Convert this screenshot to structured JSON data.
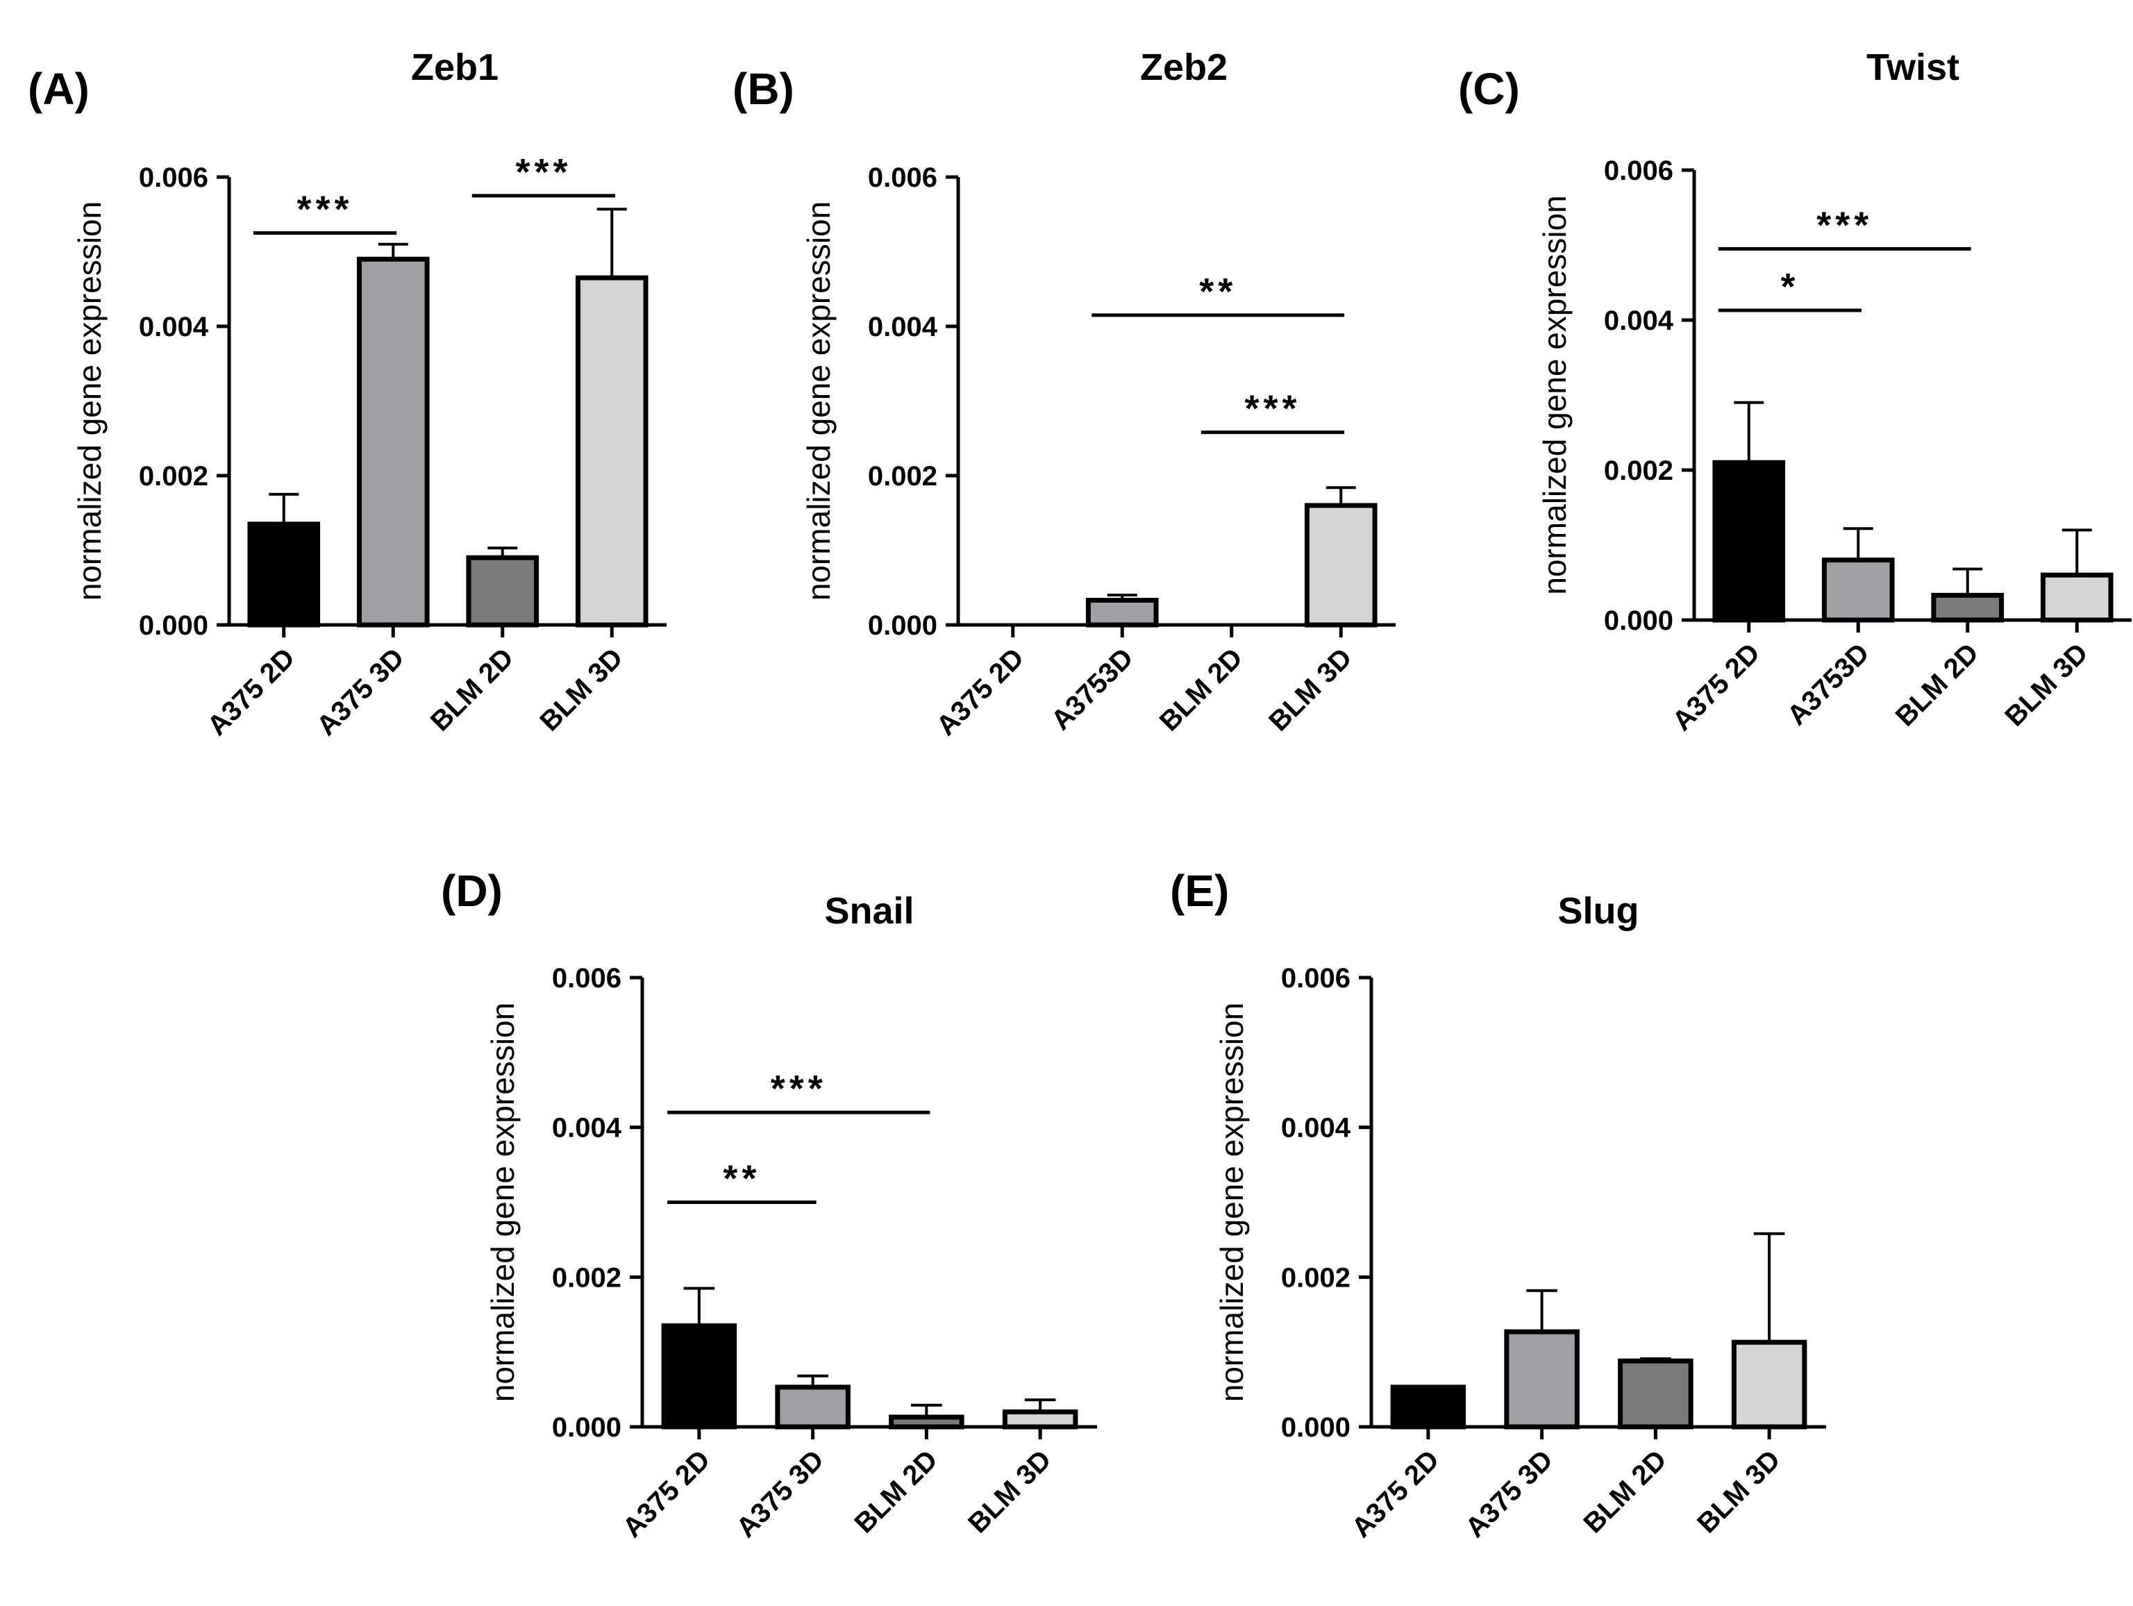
{
  "chart_data": [
    {
      "type": "bar",
      "panel": "(A)",
      "title": "Zeb1",
      "ylabel": "normalized gene expression",
      "ylim": [
        0,
        0.006
      ],
      "yticks": [
        "0.000",
        "0.002",
        "0.004",
        "0.006"
      ],
      "categories": [
        "A375 2D",
        "A375 3D",
        "BLM 2D",
        "BLM 3D"
      ],
      "values": [
        0.00135,
        0.0049,
        0.0009,
        0.00465
      ],
      "errors": [
        0.0004,
        0.0002,
        0.00013,
        0.00092
      ],
      "bar_colors": [
        "#000000",
        "#a0a0a4",
        "#7a7a7a",
        "#d4d4d4"
      ],
      "significance": [
        {
          "from": 0,
          "to": 1,
          "y": 0.00525,
          "label": "***"
        },
        {
          "from": 2,
          "to": 3,
          "y": 0.00575,
          "label": "***"
        }
      ]
    },
    {
      "type": "bar",
      "panel": "(B)",
      "title": "Zeb2",
      "ylabel": "normalized gene expression",
      "ylim": [
        0,
        0.006
      ],
      "yticks": [
        "0.000",
        "0.002",
        "0.004",
        "0.006"
      ],
      "categories": [
        "A375 2D",
        "A3753D",
        "BLM 2D",
        "BLM 3D"
      ],
      "values": [
        0.0,
        0.00033,
        0.0,
        0.0016
      ],
      "errors": [
        0.0,
        7e-05,
        0.0,
        0.00024
      ],
      "bar_colors": [
        "#000000",
        "#a0a0a4",
        "#7a7a7a",
        "#d4d4d4"
      ],
      "significance": [
        {
          "from": 1,
          "to": 3,
          "y": 0.00415,
          "label": "**"
        },
        {
          "from": 2,
          "to": 3,
          "y": 0.00258,
          "label": "***"
        }
      ]
    },
    {
      "type": "bar",
      "panel": "(C)",
      "title": "Twist",
      "ylabel": "normalized gene expression",
      "ylim": [
        0,
        0.006
      ],
      "yticks": [
        "0.000",
        "0.002",
        "0.004",
        "0.006"
      ],
      "categories": [
        "A375 2D",
        "A3753D",
        "BLM 2D",
        "BLM 3D"
      ],
      "values": [
        0.0021,
        0.0008,
        0.00033,
        0.0006
      ],
      "errors": [
        0.0008,
        0.00042,
        0.00035,
        0.0006
      ],
      "bar_colors": [
        "#000000",
        "#a0a0a4",
        "#7a7a7a",
        "#d4d4d4"
      ],
      "significance": [
        {
          "from": 0,
          "to": 1,
          "y": 0.00413,
          "label": "*"
        },
        {
          "from": 0,
          "to": 2,
          "y": 0.00495,
          "label": "***"
        }
      ]
    },
    {
      "type": "bar",
      "panel": "(D)",
      "title": "Snail",
      "ylabel": "normalized gene expression",
      "ylim": [
        0,
        0.006
      ],
      "yticks": [
        "0.000",
        "0.002",
        "0.004",
        "0.006"
      ],
      "categories": [
        "A375 2D",
        "A375 3D",
        "BLM 2D",
        "BLM 3D"
      ],
      "values": [
        0.00135,
        0.00053,
        0.00013,
        0.0002
      ],
      "errors": [
        0.0005,
        0.00015,
        0.00016,
        0.00016
      ],
      "bar_colors": [
        "#000000",
        "#a0a0a4",
        "#7a7a7a",
        "#d4d4d4"
      ],
      "significance": [
        {
          "from": 0,
          "to": 1,
          "y": 0.003,
          "label": "**"
        },
        {
          "from": 0,
          "to": 2,
          "y": 0.0042,
          "label": "***"
        }
      ]
    },
    {
      "type": "bar",
      "panel": "(E)",
      "title": "Slug",
      "ylabel": "normalized gene expression",
      "ylim": [
        0,
        0.006
      ],
      "yticks": [
        "0.000",
        "0.002",
        "0.004",
        "0.006"
      ],
      "categories": [
        "A375 2D",
        "A375 3D",
        "BLM 2D",
        "BLM 3D"
      ],
      "values": [
        0.00053,
        0.00127,
        0.00088,
        0.00113
      ],
      "errors": [
        0.0,
        0.00055,
        3e-05,
        0.00145
      ],
      "bar_colors": [
        "#000000",
        "#a0a0a4",
        "#7a7a7a",
        "#d4d4d4"
      ],
      "significance": []
    }
  ]
}
